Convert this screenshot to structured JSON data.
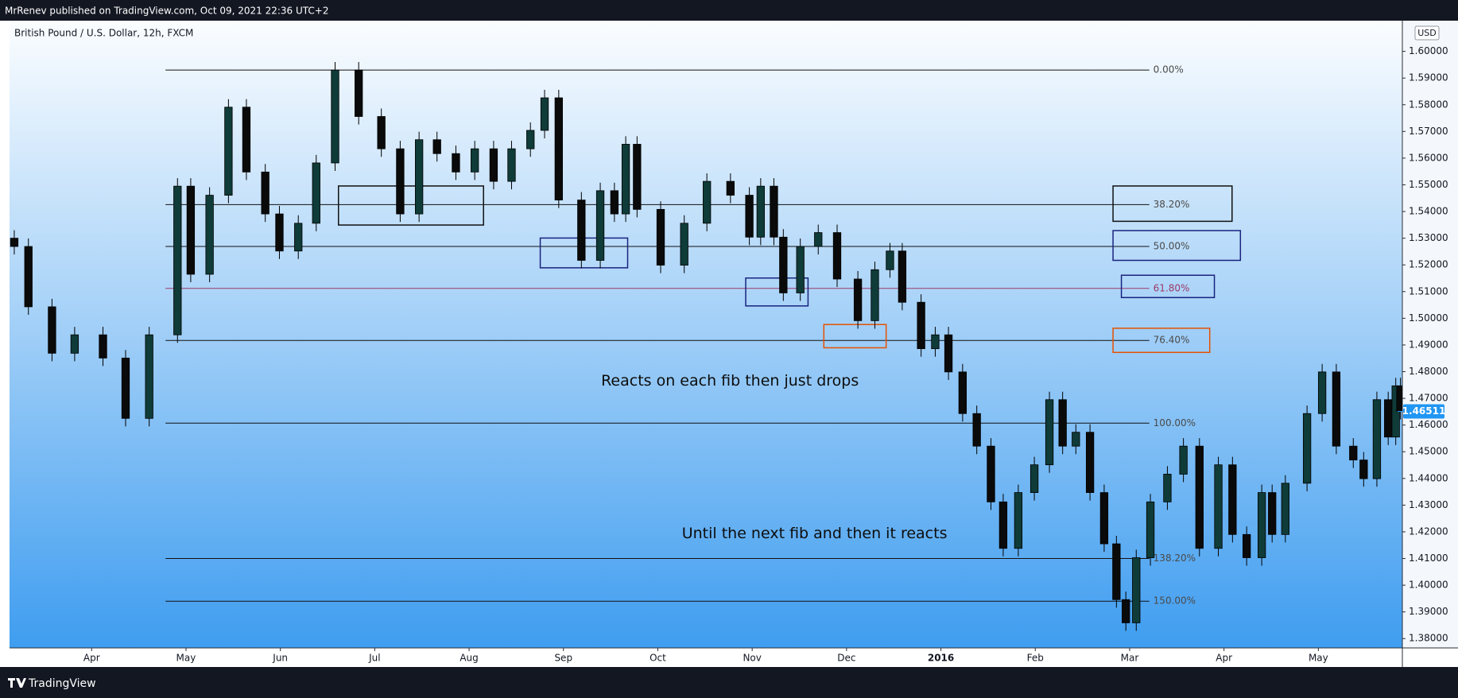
{
  "header": {
    "published": "MrRenev published on TradingView.com, Oct 09, 2021 22:36 UTC+2",
    "footer": "TradingView"
  },
  "chart_data": {
    "type": "candlestick",
    "title": "British Pound / U.S. Dollar, 12h, FXCM",
    "currency": "USD",
    "up_color": "#0f3b38",
    "down_color": "#0a0a0a",
    "xlim": [
      -0.87,
      13.89
    ],
    "xticks": [
      {
        "value": 0,
        "label": "Apr"
      },
      {
        "value": 1,
        "label": "May"
      },
      {
        "value": 2,
        "label": "Jun"
      },
      {
        "value": 3,
        "label": "Jul"
      },
      {
        "value": 4,
        "label": "Aug"
      },
      {
        "value": 5,
        "label": "Sep"
      },
      {
        "value": 6,
        "label": "Oct"
      },
      {
        "value": 7,
        "label": "Nov"
      },
      {
        "value": 8,
        "label": "Dec"
      },
      {
        "value": 9,
        "label": "2016"
      },
      {
        "value": 10,
        "label": "Feb"
      },
      {
        "value": 11,
        "label": "Mar"
      },
      {
        "value": 12,
        "label": "Apr"
      },
      {
        "value": 13,
        "label": "May"
      }
    ],
    "ylim": [
      1.3765,
      1.6115
    ],
    "yticks": [
      {
        "value": 1.38,
        "label": "1.38000"
      },
      {
        "value": 1.39,
        "label": "1.39000"
      },
      {
        "value": 1.4,
        "label": "1.40000"
      },
      {
        "value": 1.41,
        "label": "1.41000"
      },
      {
        "value": 1.42,
        "label": "1.42000"
      },
      {
        "value": 1.43,
        "label": "1.43000"
      },
      {
        "value": 1.44,
        "label": "1.44000"
      },
      {
        "value": 1.45,
        "label": "1.45000"
      },
      {
        "value": 1.46,
        "label": "1.46000"
      },
      {
        "value": 1.47,
        "label": "1.47000"
      },
      {
        "value": 1.48,
        "label": "1.48000"
      },
      {
        "value": 1.49,
        "label": "1.49000"
      },
      {
        "value": 1.5,
        "label": "1.50000"
      },
      {
        "value": 1.51,
        "label": "1.51000"
      },
      {
        "value": 1.52,
        "label": "1.52000"
      },
      {
        "value": 1.53,
        "label": "1.53000"
      },
      {
        "value": 1.54,
        "label": "1.54000"
      },
      {
        "value": 1.55,
        "label": "1.55000"
      },
      {
        "value": 1.56,
        "label": "1.56000"
      },
      {
        "value": 1.57,
        "label": "1.57000"
      },
      {
        "value": 1.58,
        "label": "1.58000"
      },
      {
        "value": 1.59,
        "label": "1.59000"
      },
      {
        "value": 1.6,
        "label": "1.60000"
      }
    ],
    "last_price": 1.46511,
    "fib_levels": [
      {
        "label": "0.00%",
        "price": 1.593,
        "color": "#111111"
      },
      {
        "label": "38.20%",
        "price": 1.5426,
        "color": "#111111"
      },
      {
        "label": "50.00%",
        "price": 1.5269,
        "color": "#111111"
      },
      {
        "label": "61.80%",
        "price": 1.5112,
        "color": "#9c3a6a"
      },
      {
        "label": "76.40%",
        "price": 1.4917,
        "color": "#111111"
      },
      {
        "label": "100.00%",
        "price": 1.4607,
        "color": "#111111"
      },
      {
        "label": "138.20%",
        "price": 1.41,
        "color": "#111111"
      },
      {
        "label": "150.00%",
        "price": 1.394,
        "color": "#111111"
      }
    ],
    "annotations": [
      "Reacts on each fib then just drops",
      "Until the next fib and then it reacts"
    ],
    "x": [
      -0.82,
      -0.67,
      -0.42,
      -0.18,
      0.12,
      0.36,
      0.61,
      0.91,
      1.05,
      1.25,
      1.45,
      1.64,
      1.84,
      1.99,
      2.19,
      2.38,
      2.58,
      2.83,
      3.07,
      3.27,
      3.47,
      3.66,
      3.86,
      4.06,
      4.26,
      4.45,
      4.65,
      4.8,
      4.95,
      5.19,
      5.39,
      5.54,
      5.66,
      5.78,
      6.03,
      6.28,
      6.52,
      6.77,
      6.97,
      7.09,
      7.23,
      7.33,
      7.51,
      7.7,
      7.9,
      8.12,
      8.3,
      8.46,
      8.59,
      8.79,
      8.94,
      9.08,
      9.23,
      9.38,
      9.53,
      9.66,
      9.82,
      9.99,
      10.15,
      10.29,
      10.43,
      10.58,
      10.73,
      10.86,
      10.96,
      11.07,
      11.22,
      11.4,
      11.57,
      11.74,
      11.94,
      12.09,
      12.24,
      12.4,
      12.51,
      12.65,
      12.88,
      13.04,
      13.19,
      13.37,
      13.48,
      13.62,
      13.74,
      13.82,
      13.87
    ],
    "open": [
      1.53,
      1.5269,
      1.5043,
      1.4869,
      1.4938,
      1.4851,
      1.4625,
      1.4938,
      1.5495,
      1.5165,
      1.5461,
      1.5791,
      1.5548,
      1.5391,
      1.5252,
      1.5356,
      1.5582,
      1.593,
      1.5756,
      1.5635,
      1.5391,
      1.5669,
      1.5617,
      1.5548,
      1.5635,
      1.5513,
      1.5635,
      1.5704,
      1.5826,
      1.5443,
      1.5217,
      1.5478,
      1.5391,
      1.5652,
      1.5408,
      1.5199,
      1.5356,
      1.5513,
      1.5461,
      1.5304,
      1.5495,
      1.5304,
      1.5095,
      1.5269,
      1.5321,
      1.5147,
      1.4991,
      1.5182,
      1.5252,
      1.506,
      1.4886,
      1.4938,
      1.4799,
      1.4643,
      1.4521,
      1.4312,
      1.4138,
      1.4347,
      1.4451,
      1.4695,
      1.4521,
      1.4573,
      1.4347,
      1.4155,
      1.3946,
      1.3859,
      1.4103,
      1.4312,
      1.4416,
      1.4521,
      1.4138,
      1.4451,
      1.419,
      1.4103,
      1.4347,
      1.419,
      1.4382,
      1.4643,
      1.4799,
      1.4521,
      1.4469,
      1.4399,
      1.4695,
      1.4555,
      1.4747
    ],
    "high": [
      1.533,
      1.5299,
      1.5073,
      1.4968,
      1.4968,
      1.4881,
      1.4968,
      1.5525,
      1.5525,
      1.5491,
      1.5821,
      1.5821,
      1.5578,
      1.5421,
      1.5386,
      1.5612,
      1.596,
      1.596,
      1.5786,
      1.5665,
      1.5699,
      1.5699,
      1.5647,
      1.5665,
      1.5665,
      1.5665,
      1.5734,
      1.5856,
      1.5856,
      1.5473,
      1.5508,
      1.5508,
      1.5682,
      1.5682,
      1.5438,
      1.5386,
      1.5543,
      1.5543,
      1.5491,
      1.5525,
      1.5525,
      1.5334,
      1.5299,
      1.5351,
      1.5351,
      1.5177,
      1.5212,
      1.5282,
      1.5282,
      1.509,
      1.4968,
      1.4968,
      1.4829,
      1.4673,
      1.4551,
      1.4342,
      1.4377,
      1.4481,
      1.4725,
      1.4725,
      1.4603,
      1.4603,
      1.4377,
      1.4185,
      1.3976,
      1.4133,
      1.4342,
      1.4446,
      1.4551,
      1.4551,
      1.4481,
      1.4481,
      1.422,
      1.4377,
      1.4377,
      1.4412,
      1.4673,
      1.4829,
      1.4829,
      1.4551,
      1.4499,
      1.4725,
      1.4725,
      1.4777,
      1.4777
    ],
    "low": [
      1.5239,
      1.5013,
      1.4839,
      1.4839,
      1.4821,
      1.4595,
      1.4595,
      1.4908,
      1.5135,
      1.5135,
      1.5431,
      1.5518,
      1.5361,
      1.5222,
      1.5222,
      1.5326,
      1.5552,
      1.5726,
      1.5605,
      1.5361,
      1.5361,
      1.5587,
      1.5518,
      1.5518,
      1.5483,
      1.5483,
      1.5605,
      1.5674,
      1.5413,
      1.5187,
      1.5187,
      1.5361,
      1.5361,
      1.5378,
      1.5169,
      1.5169,
      1.5326,
      1.5431,
      1.5274,
      1.5274,
      1.5274,
      1.5065,
      1.5065,
      1.5239,
      1.5117,
      1.4961,
      1.4961,
      1.5152,
      1.503,
      1.4856,
      1.4856,
      1.4769,
      1.4613,
      1.4491,
      1.4282,
      1.4108,
      1.4108,
      1.4317,
      1.4421,
      1.4491,
      1.4491,
      1.4317,
      1.4125,
      1.3916,
      1.3829,
      1.3829,
      1.4073,
      1.4282,
      1.4386,
      1.4108,
      1.4108,
      1.416,
      1.4073,
      1.4073,
      1.416,
      1.416,
      1.4352,
      1.4613,
      1.4491,
      1.4439,
      1.4369,
      1.4369,
      1.4525,
      1.4525,
      1.4621
    ],
    "close": [
      1.5269,
      1.5043,
      1.4869,
      1.4938,
      1.4851,
      1.4625,
      1.4938,
      1.5495,
      1.5165,
      1.5461,
      1.5791,
      1.5548,
      1.5391,
      1.5252,
      1.5356,
      1.5582,
      1.593,
      1.5756,
      1.5635,
      1.5391,
      1.5669,
      1.5617,
      1.5548,
      1.5635,
      1.5513,
      1.5635,
      1.5704,
      1.5826,
      1.5443,
      1.5217,
      1.5478,
      1.5391,
      1.5652,
      1.5408,
      1.5199,
      1.5356,
      1.5513,
      1.5461,
      1.5304,
      1.5495,
      1.5304,
      1.5095,
      1.5269,
      1.5321,
      1.5147,
      1.4991,
      1.5182,
      1.5252,
      1.506,
      1.4886,
      1.4938,
      1.4799,
      1.4643,
      1.4521,
      1.4312,
      1.4138,
      1.4347,
      1.4451,
      1.4695,
      1.4521,
      1.4573,
      1.4347,
      1.4155,
      1.3946,
      1.3859,
      1.4103,
      1.4312,
      1.4416,
      1.4521,
      1.4138,
      1.4451,
      1.419,
      1.4103,
      1.4347,
      1.419,
      1.4382,
      1.4643,
      1.4799,
      1.4521,
      1.4469,
      1.4399,
      1.4695,
      1.4555,
      1.4747,
      1.4651
    ]
  }
}
